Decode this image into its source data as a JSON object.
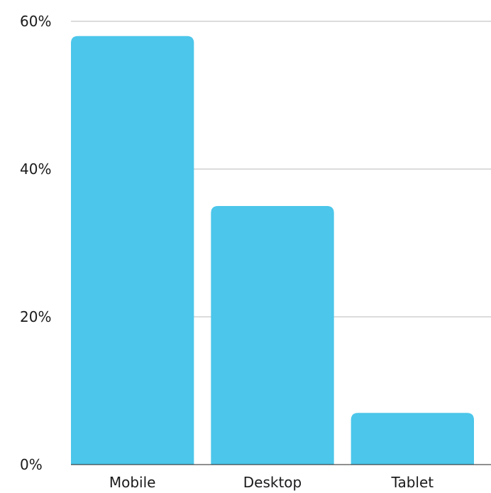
{
  "chart_data": {
    "type": "bar",
    "title": "",
    "xlabel": "",
    "ylabel": "",
    "categories": [
      "Mobile",
      "Desktop",
      "Tablet"
    ],
    "values": [
      58,
      35,
      7
    ],
    "ylim": [
      0,
      60
    ],
    "y_ticks": [
      0,
      20,
      40,
      60
    ],
    "y_tick_format": "percent",
    "grid": "horizontal",
    "bar_color": "#4CC6EA",
    "grid_color": "#b8b8b8",
    "legend": "none"
  }
}
